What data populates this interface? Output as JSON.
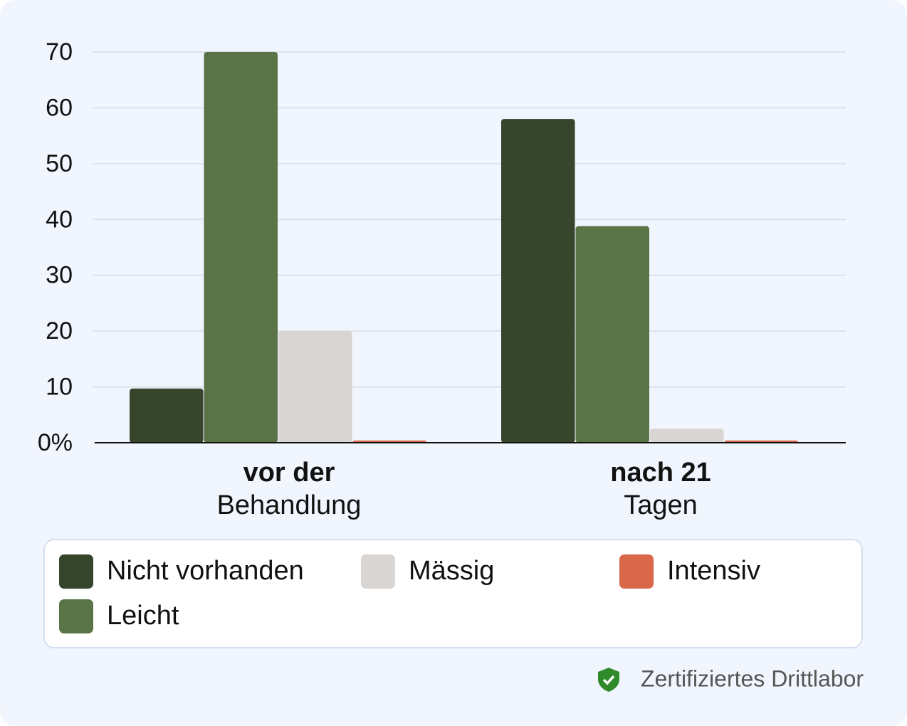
{
  "chart_data": {
    "type": "bar",
    "categories": [
      [
        "vor der",
        "Behandlung"
      ],
      [
        "nach 21",
        "Tagen"
      ]
    ],
    "series": [
      {
        "name": "Nicht vorhanden",
        "color": "#36452c",
        "values": [
          9.7,
          58
        ]
      },
      {
        "name": "Leicht",
        "color": "#5a7448",
        "values": [
          70,
          38.8
        ]
      },
      {
        "name": "Mässig",
        "color": "#d8d5d2",
        "values": [
          20,
          2.5
        ]
      },
      {
        "name": "Intensiv",
        "color": "#d9674a",
        "values": [
          0.4,
          0.4
        ]
      }
    ],
    "ylim": [
      0,
      70
    ],
    "yticks": [
      {
        "value": 0,
        "label": "0%"
      },
      10,
      20,
      30,
      40,
      50,
      60,
      70
    ],
    "grid": true,
    "legend": "bottom"
  },
  "badge": "Zertifiziertes Drittlabor"
}
